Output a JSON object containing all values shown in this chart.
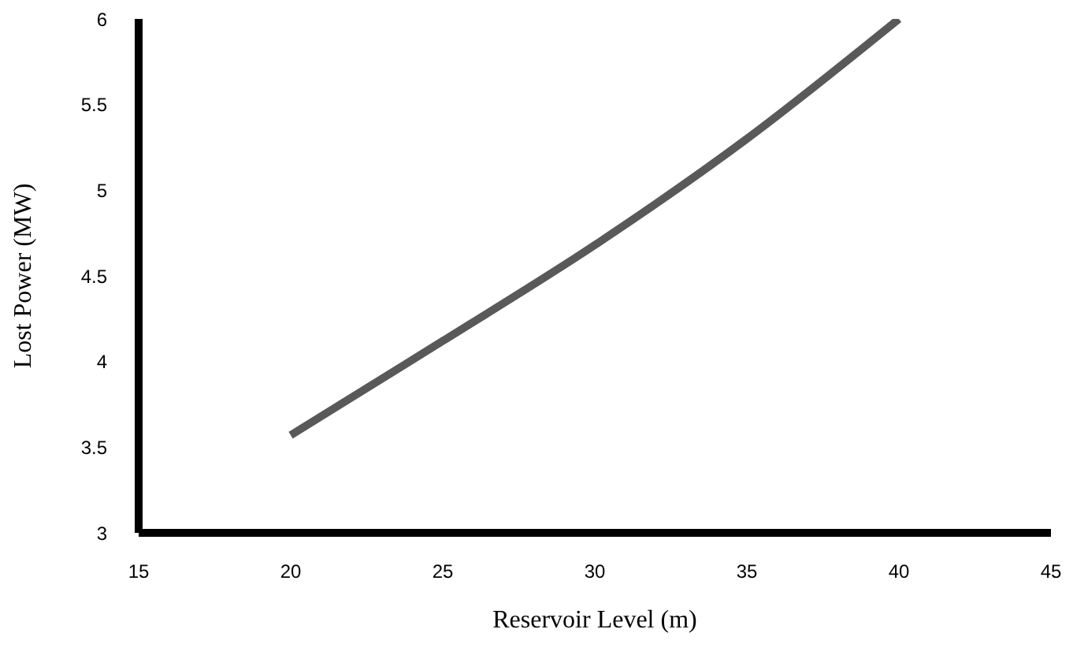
{
  "chart_data": {
    "type": "line",
    "xlabel": "Reservoir Level (m)",
    "ylabel": "Lost Power (MW)",
    "x": [
      20,
      25,
      30,
      35,
      40
    ],
    "series": [
      {
        "color": "#595959",
        "values": [
          3.57,
          4.12,
          4.68,
          5.3,
          6.0
        ]
      }
    ],
    "xlim": [
      15,
      45
    ],
    "xticks": [
      15,
      20,
      25,
      30,
      35,
      40,
      45
    ],
    "ylim": [
      3,
      6
    ],
    "yticks": [
      3,
      3.5,
      4,
      4.5,
      5,
      5.5,
      6
    ],
    "grid": false,
    "legend": false,
    "marker": "none",
    "line_style": "solid"
  }
}
